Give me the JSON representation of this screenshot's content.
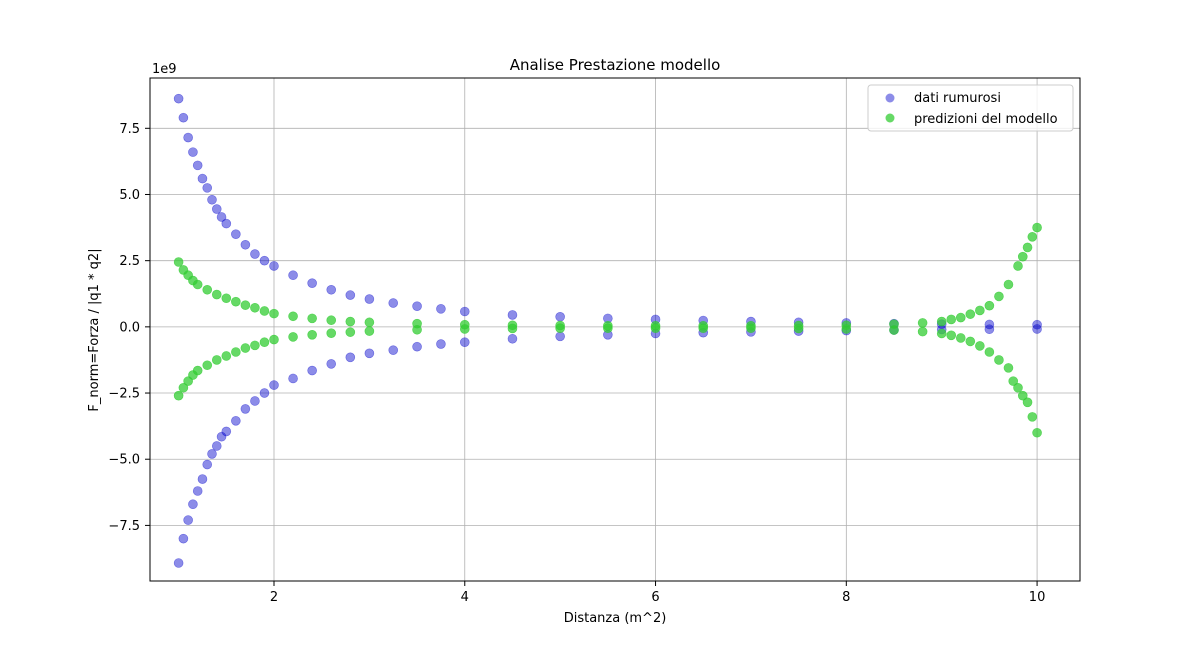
{
  "chart_data": {
    "type": "scatter",
    "title": "Analise Prestazione modello",
    "xlabel": "Distanza (m^2)",
    "ylabel": "F_norm=Forza / |q1 * q2|",
    "y_offset_text": "1e9",
    "xlim": [
      0.7,
      10.45
    ],
    "ylim": [
      -9.6,
      9.4
    ],
    "x_ticks": [
      2,
      4,
      6,
      8,
      10
    ],
    "y_ticks": [
      -7.5,
      -5.0,
      -2.5,
      0.0,
      2.5,
      5.0,
      7.5
    ],
    "y_tick_labels": [
      "−7.5",
      "−5.0",
      "−2.5",
      "0.0",
      "2.5",
      "5.0",
      "7.5"
    ],
    "grid": true,
    "legend_position": "top-right",
    "series": [
      {
        "name": "dati rumurosi",
        "color": "#0000cc",
        "alpha": 0.45,
        "curves": [
          {
            "label": "upper",
            "points": [
              [
                1.0,
                8.62
              ],
              [
                1.05,
                7.9
              ],
              [
                1.1,
                7.15
              ],
              [
                1.15,
                6.6
              ],
              [
                1.2,
                6.1
              ],
              [
                1.25,
                5.6
              ],
              [
                1.3,
                5.25
              ],
              [
                1.35,
                4.8
              ],
              [
                1.4,
                4.45
              ],
              [
                1.45,
                4.15
              ],
              [
                1.5,
                3.9
              ],
              [
                1.6,
                3.5
              ],
              [
                1.7,
                3.1
              ],
              [
                1.8,
                2.75
              ],
              [
                1.9,
                2.5
              ],
              [
                2.0,
                2.3
              ],
              [
                2.2,
                1.95
              ],
              [
                2.4,
                1.65
              ],
              [
                2.6,
                1.4
              ],
              [
                2.8,
                1.2
              ],
              [
                3.0,
                1.05
              ],
              [
                3.25,
                0.9
              ],
              [
                3.5,
                0.78
              ],
              [
                3.75,
                0.68
              ],
              [
                4.0,
                0.58
              ],
              [
                4.5,
                0.45
              ],
              [
                5.0,
                0.38
              ],
              [
                5.5,
                0.32
              ],
              [
                6.0,
                0.28
              ],
              [
                6.5,
                0.24
              ],
              [
                7.0,
                0.2
              ],
              [
                7.5,
                0.17
              ],
              [
                8.0,
                0.15
              ],
              [
                8.5,
                0.12
              ],
              [
                9.0,
                0.1
              ],
              [
                9.5,
                0.09
              ],
              [
                10.0,
                0.08
              ]
            ]
          },
          {
            "label": "lower",
            "points": [
              [
                1.0,
                -8.92
              ],
              [
                1.05,
                -8.0
              ],
              [
                1.1,
                -7.3
              ],
              [
                1.15,
                -6.7
              ],
              [
                1.2,
                -6.2
              ],
              [
                1.25,
                -5.75
              ],
              [
                1.3,
                -5.2
              ],
              [
                1.35,
                -4.8
              ],
              [
                1.4,
                -4.5
              ],
              [
                1.45,
                -4.15
              ],
              [
                1.5,
                -3.95
              ],
              [
                1.6,
                -3.55
              ],
              [
                1.7,
                -3.1
              ],
              [
                1.8,
                -2.8
              ],
              [
                1.9,
                -2.5
              ],
              [
                2.0,
                -2.2
              ],
              [
                2.2,
                -1.95
              ],
              [
                2.4,
                -1.65
              ],
              [
                2.6,
                -1.4
              ],
              [
                2.8,
                -1.15
              ],
              [
                3.0,
                -1.0
              ],
              [
                3.25,
                -0.88
              ],
              [
                3.5,
                -0.75
              ],
              [
                3.75,
                -0.65
              ],
              [
                4.0,
                -0.58
              ],
              [
                4.5,
                -0.45
              ],
              [
                5.0,
                -0.36
              ],
              [
                5.5,
                -0.3
              ],
              [
                6.0,
                -0.25
              ],
              [
                6.5,
                -0.22
              ],
              [
                7.0,
                -0.19
              ],
              [
                7.5,
                -0.16
              ],
              [
                8.0,
                -0.14
              ],
              [
                8.5,
                -0.12
              ],
              [
                9.0,
                -0.1
              ],
              [
                9.5,
                -0.09
              ],
              [
                10.0,
                -0.08
              ]
            ]
          }
        ]
      },
      {
        "name": "predizioni del modello",
        "color": "#33cc33",
        "alpha": 0.75,
        "curves": [
          {
            "label": "upper",
            "points": [
              [
                1.0,
                2.45
              ],
              [
                1.05,
                2.15
              ],
              [
                1.1,
                1.95
              ],
              [
                1.15,
                1.75
              ],
              [
                1.2,
                1.6
              ],
              [
                1.3,
                1.4
              ],
              [
                1.4,
                1.22
              ],
              [
                1.5,
                1.08
              ],
              [
                1.6,
                0.95
              ],
              [
                1.7,
                0.82
              ],
              [
                1.8,
                0.72
              ],
              [
                1.9,
                0.6
              ],
              [
                2.0,
                0.5
              ],
              [
                2.2,
                0.4
              ],
              [
                2.4,
                0.32
              ],
              [
                2.6,
                0.25
              ],
              [
                2.8,
                0.2
              ],
              [
                3.0,
                0.17
              ],
              [
                3.5,
                0.12
              ],
              [
                4.0,
                0.08
              ],
              [
                4.5,
                0.06
              ],
              [
                5.0,
                0.05
              ],
              [
                5.5,
                0.04
              ],
              [
                6.0,
                0.04
              ],
              [
                6.5,
                0.04
              ],
              [
                7.0,
                0.04
              ],
              [
                7.5,
                0.05
              ],
              [
                8.0,
                0.06
              ],
              [
                8.5,
                0.1
              ],
              [
                8.8,
                0.15
              ],
              [
                9.0,
                0.2
              ],
              [
                9.1,
                0.28
              ],
              [
                9.2,
                0.35
              ],
              [
                9.3,
                0.48
              ],
              [
                9.4,
                0.62
              ],
              [
                9.5,
                0.8
              ],
              [
                9.6,
                1.15
              ],
              [
                9.7,
                1.6
              ],
              [
                9.8,
                2.3
              ],
              [
                9.85,
                2.65
              ],
              [
                9.9,
                3.0
              ],
              [
                9.95,
                3.4
              ],
              [
                10.0,
                3.75
              ]
            ]
          },
          {
            "label": "lower",
            "points": [
              [
                1.0,
                -2.6
              ],
              [
                1.05,
                -2.3
              ],
              [
                1.1,
                -2.05
              ],
              [
                1.15,
                -1.82
              ],
              [
                1.2,
                -1.65
              ],
              [
                1.3,
                -1.45
              ],
              [
                1.4,
                -1.25
              ],
              [
                1.5,
                -1.1
              ],
              [
                1.6,
                -0.95
              ],
              [
                1.7,
                -0.8
              ],
              [
                1.8,
                -0.7
              ],
              [
                1.9,
                -0.58
              ],
              [
                2.0,
                -0.48
              ],
              [
                2.2,
                -0.38
              ],
              [
                2.4,
                -0.3
              ],
              [
                2.6,
                -0.24
              ],
              [
                2.8,
                -0.2
              ],
              [
                3.0,
                -0.16
              ],
              [
                3.5,
                -0.11
              ],
              [
                4.0,
                -0.08
              ],
              [
                4.5,
                -0.06
              ],
              [
                5.0,
                -0.05
              ],
              [
                5.5,
                -0.05
              ],
              [
                6.0,
                -0.05
              ],
              [
                6.5,
                -0.05
              ],
              [
                7.0,
                -0.05
              ],
              [
                7.5,
                -0.06
              ],
              [
                8.0,
                -0.08
              ],
              [
                8.5,
                -0.12
              ],
              [
                8.8,
                -0.18
              ],
              [
                9.0,
                -0.25
              ],
              [
                9.1,
                -0.32
              ],
              [
                9.2,
                -0.42
              ],
              [
                9.3,
                -0.55
              ],
              [
                9.4,
                -0.72
              ],
              [
                9.5,
                -0.95
              ],
              [
                9.6,
                -1.25
              ],
              [
                9.7,
                -1.55
              ],
              [
                9.75,
                -2.05
              ],
              [
                9.8,
                -2.3
              ],
              [
                9.85,
                -2.6
              ],
              [
                9.9,
                -2.85
              ],
              [
                9.95,
                -3.4
              ],
              [
                10.0,
                -4.0
              ]
            ]
          }
        ]
      }
    ]
  }
}
